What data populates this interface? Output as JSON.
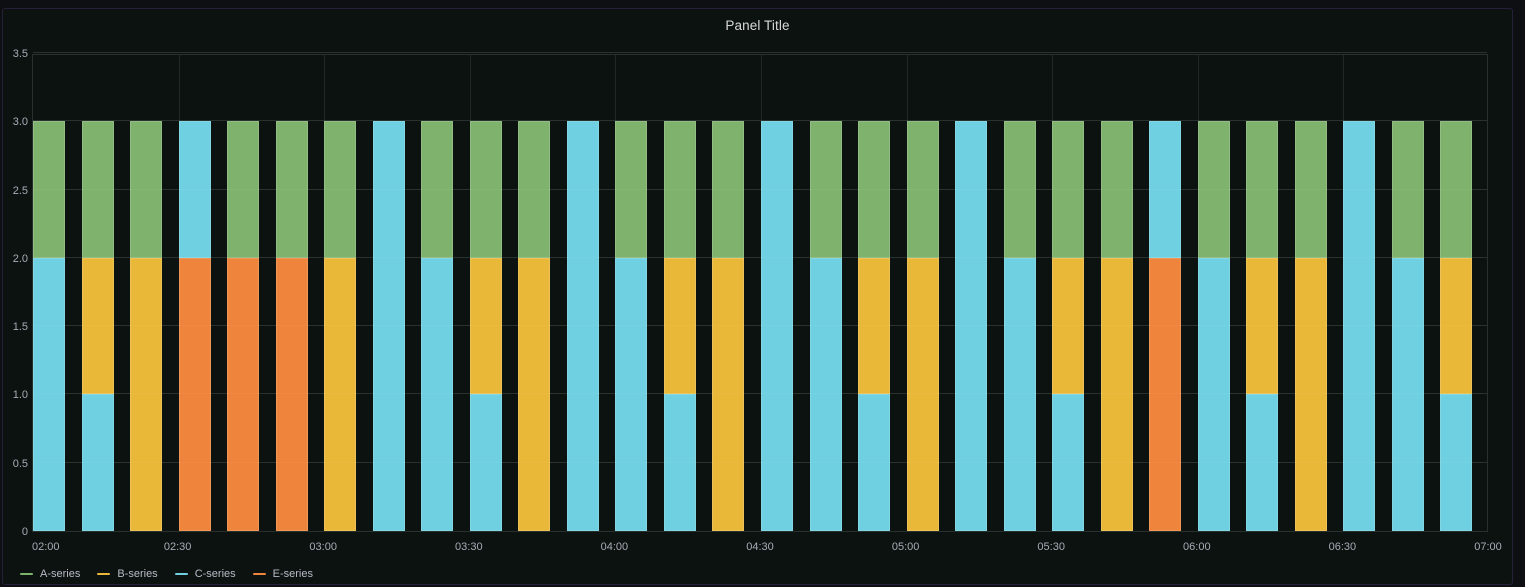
{
  "panel": {
    "title": "Panel Title"
  },
  "colors": {
    "a_series": "#7EB26D",
    "b_series": "#EAB839",
    "c_series": "#6ED0E0",
    "e_series": "#EF843C",
    "panel_background": "#0b120f",
    "axis_text": "#ccccdc"
  },
  "legend": {
    "items": [
      {
        "label": "A-series",
        "color": "#7EB26D"
      },
      {
        "label": "B-series",
        "color": "#EAB839"
      },
      {
        "label": "C-series",
        "color": "#6ED0E0"
      },
      {
        "label": "E-series",
        "color": "#EF843C"
      }
    ]
  },
  "chart_data": {
    "type": "bar",
    "stacked": true,
    "title": "Panel Title",
    "xlabel": "",
    "ylabel": "",
    "ylim": [
      0,
      3.5
    ],
    "grid": true,
    "legend_position": "bottom-left",
    "x": [
      "02:00",
      "02:10",
      "02:20",
      "02:30",
      "02:40",
      "02:50",
      "03:00",
      "03:10",
      "03:20",
      "03:30",
      "03:40",
      "03:50",
      "04:00",
      "04:10",
      "04:20",
      "04:30",
      "04:40",
      "04:50",
      "05:00",
      "05:10",
      "05:20",
      "05:30",
      "05:40",
      "05:50",
      "06:00",
      "06:10",
      "06:20",
      "06:30",
      "06:40",
      "06:50"
    ],
    "series": [
      {
        "name": "A-series",
        "color": "#7EB26D",
        "values": [
          1,
          1,
          1,
          0,
          1,
          1,
          1,
          0,
          1,
          1,
          1,
          0,
          1,
          1,
          1,
          0,
          1,
          1,
          1,
          0,
          1,
          1,
          1,
          0,
          1,
          1,
          1,
          0,
          1,
          1
        ]
      },
      {
        "name": "B-series",
        "color": "#EAB839",
        "values": [
          0,
          1,
          2,
          0,
          0,
          0,
          2,
          0,
          0,
          1,
          2,
          0,
          0,
          1,
          2,
          0,
          0,
          1,
          2,
          0,
          0,
          1,
          2,
          0,
          0,
          1,
          2,
          0,
          0,
          1
        ]
      },
      {
        "name": "C-series",
        "color": "#6ED0E0",
        "values": [
          2,
          1,
          0,
          1,
          0,
          0,
          0,
          3,
          2,
          1,
          0,
          3,
          2,
          1,
          0,
          3,
          2,
          1,
          0,
          3,
          2,
          1,
          0,
          1,
          2,
          1,
          0,
          3,
          2,
          1
        ]
      },
      {
        "name": "E-series",
        "color": "#EF843C",
        "values": [
          0,
          0,
          0,
          2,
          2,
          2,
          0,
          0,
          0,
          0,
          0,
          0,
          0,
          0,
          0,
          0,
          0,
          0,
          0,
          0,
          0,
          0,
          0,
          2,
          0,
          0,
          0,
          0,
          0,
          0
        ]
      }
    ],
    "stack_order": [
      "E-series",
      "C-series",
      "B-series",
      "A-series"
    ],
    "yticks": [
      {
        "value": 0,
        "label": "0"
      },
      {
        "value": 0.5,
        "label": "0.5"
      },
      {
        "value": 1,
        "label": "1.0"
      },
      {
        "value": 1.5,
        "label": "1.5"
      },
      {
        "value": 2,
        "label": "2.0"
      },
      {
        "value": 2.5,
        "label": "2.5"
      },
      {
        "value": 3,
        "label": "3.0"
      },
      {
        "value": 3.5,
        "label": "3.5"
      }
    ],
    "xticks": [
      {
        "index": 0,
        "label": "02:00"
      },
      {
        "index": 3,
        "label": "02:30"
      },
      {
        "index": 6,
        "label": "03:00"
      },
      {
        "index": 9,
        "label": "03:30"
      },
      {
        "index": 12,
        "label": "04:00"
      },
      {
        "index": 15,
        "label": "04:30"
      },
      {
        "index": 18,
        "label": "05:00"
      },
      {
        "index": 21,
        "label": "05:30"
      },
      {
        "index": 24,
        "label": "06:00"
      },
      {
        "index": 27,
        "label": "06:30"
      },
      {
        "index": 30,
        "label": "07:00"
      }
    ]
  }
}
